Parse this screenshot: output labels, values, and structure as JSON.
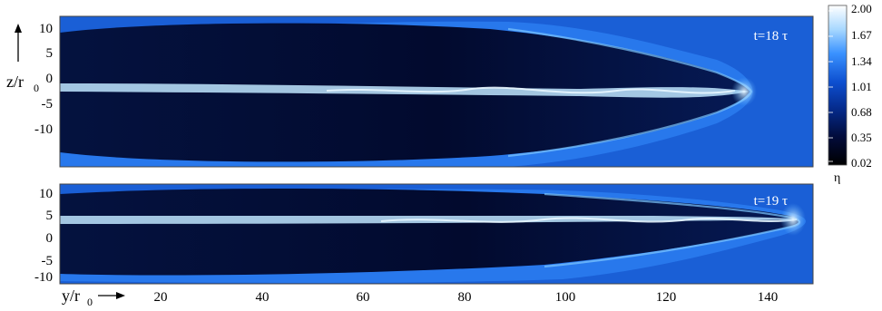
{
  "panels": [
    {
      "time_label": "t=18 τ",
      "jet_tip_y": 138
    },
    {
      "time_label": "t=19 τ",
      "jet_tip_y": 149
    }
  ],
  "axes": {
    "x_label_main": "y/r",
    "x_label_sub": "0",
    "y_label_main": "z/r",
    "y_label_sub": "0",
    "x_ticks": [
      "20",
      "40",
      "60",
      "80",
      "100",
      "120",
      "140"
    ],
    "y_ticks": [
      "10",
      "5",
      "0",
      "-5",
      "-10"
    ],
    "x_range": [
      0,
      150
    ],
    "z_range": [
      -13,
      13
    ]
  },
  "colorbar": {
    "label": "η",
    "ticks": [
      "2.00",
      "1.67",
      "1.34",
      "1.01",
      "0.68",
      "0.35",
      "0.02"
    ],
    "colors": [
      "#ffffff",
      "#5ab4ff",
      "#1f6ff0",
      "#0a3cb5",
      "#041a66",
      "#01062a",
      "#000000"
    ]
  },
  "colors": {
    "background_medium": "#1a5fd6",
    "dark_cocoon": "#020a2e",
    "jet_spine": "#bfe6ff"
  }
}
